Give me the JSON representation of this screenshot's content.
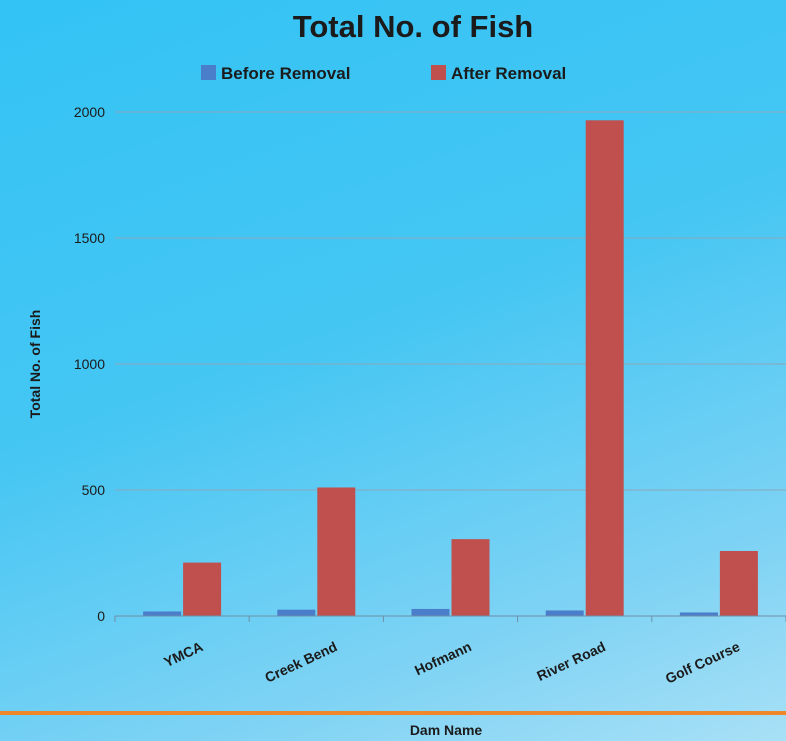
{
  "chart_data": {
    "type": "bar",
    "title": "Total No. of Fish",
    "xlabel": "Dam Name",
    "ylabel": "Total No. of Fish",
    "categories": [
      "YMCA",
      "Creek Bend",
      "Hofmann",
      "River Road",
      "Golf Course"
    ],
    "series": [
      {
        "name": "Before Removal",
        "color": "#4a7ecb",
        "values": [
          18,
          25,
          28,
          22,
          14
        ]
      },
      {
        "name": "After Removal",
        "color": "#c0504d",
        "values": [
          212,
          510,
          305,
          1967,
          258
        ]
      }
    ],
    "ylim": [
      0,
      2000
    ],
    "yticks": [
      0,
      500,
      1000,
      1500,
      2000
    ],
    "grid": true,
    "legend_position": "top",
    "separator_color": "#f0862a"
  }
}
